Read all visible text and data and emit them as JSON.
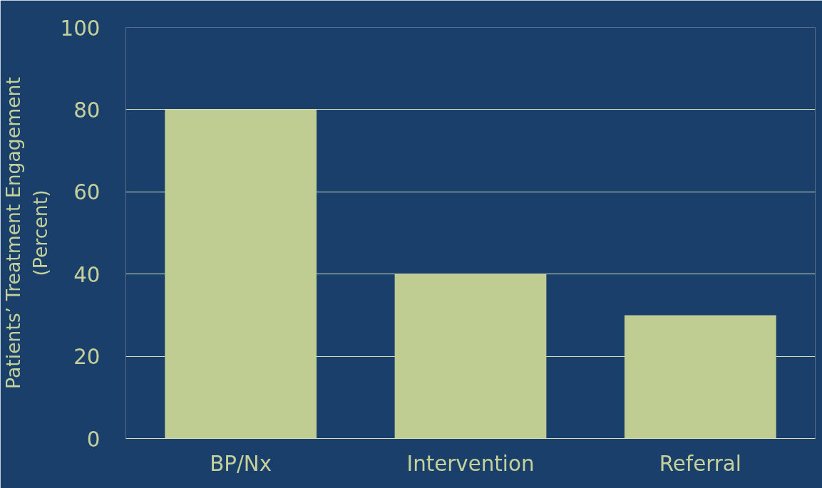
{
  "chart_data": {
    "type": "bar",
    "ylabel": "Patients’ Treatment Engagement\n(Percent)",
    "categories": [
      "BP/Nx",
      "Intervention",
      "Referral"
    ],
    "values": [
      80,
      40,
      30
    ],
    "color": "#bfcc92",
    "ylim": [
      0,
      100
    ],
    "yticks": [
      0,
      20,
      40,
      60,
      80,
      100
    ],
    "grid": "y"
  }
}
